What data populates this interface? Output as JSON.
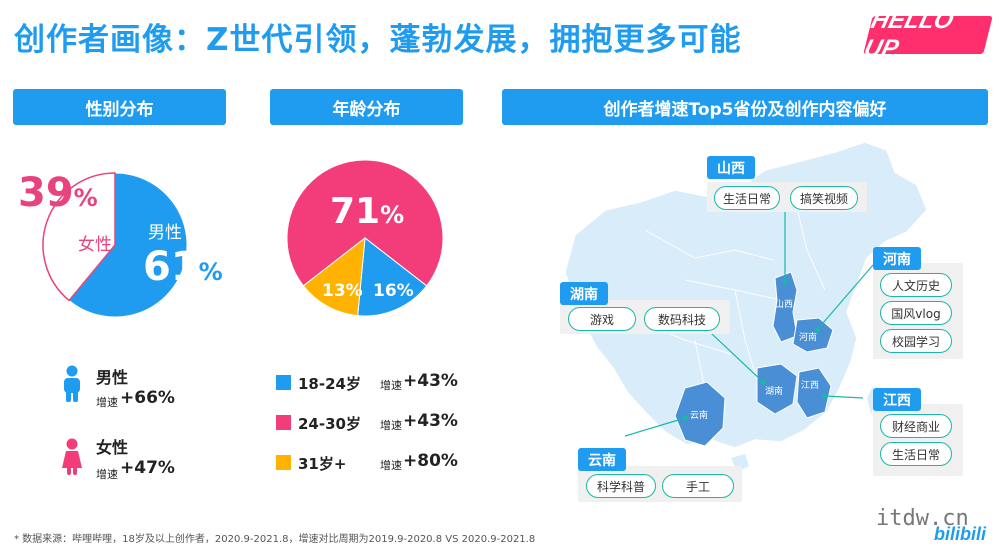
{
  "header": {
    "title": "创作者画像：Z世代引领，蓬勃发展，拥抱更多可能",
    "logo": "HELLO UP"
  },
  "sections": {
    "gender": "性别分布",
    "age": "年龄分布",
    "region": "创作者增速Top5省份及创作内容偏好"
  },
  "gender": {
    "female_pct": "39",
    "male_pct": "61",
    "pct_sign": "%",
    "female_label": "女性",
    "male_label": "男性",
    "growth_label": "增速",
    "male_growth": "+66%",
    "female_growth": "+47%"
  },
  "age": {
    "big_label": "71",
    "pct_sign": "%",
    "mid_label": "13%",
    "small_label": "16%",
    "growth_label": "增速"
  },
  "chart_data": [
    {
      "type": "pie",
      "title": "性别分布",
      "slices": [
        {
          "name": "男性",
          "value": 61,
          "color": "#1f9cf0"
        },
        {
          "name": "女性",
          "value": 39,
          "color": "#ffffff",
          "stroke": "#e8437e"
        }
      ],
      "growth": [
        {
          "name": "男性",
          "value": "+66%"
        },
        {
          "name": "女性",
          "value": "+47%"
        }
      ]
    },
    {
      "type": "pie",
      "title": "年龄分布",
      "slices": [
        {
          "name": "24-30岁",
          "value": 71,
          "color": "#f23d7a"
        },
        {
          "name": "18-24岁",
          "value": 16,
          "color": "#1f9cf0"
        },
        {
          "name": "31岁+",
          "value": 13,
          "color": "#ffb300"
        }
      ],
      "legend": [
        {
          "name": "18-24岁",
          "growth": "+43%",
          "color": "#1f9cf0"
        },
        {
          "name": "24-30岁",
          "growth": "+43%",
          "color": "#f23d7a"
        },
        {
          "name": "31岁+",
          "growth": "+80%",
          "color": "#ffb300"
        }
      ]
    }
  ],
  "map": {
    "provinces": [
      {
        "name": "山西",
        "map_label": "山西",
        "tags": [
          "生活日常",
          "搞笑视频"
        ]
      },
      {
        "name": "河南",
        "map_label": "河南",
        "tags": [
          "人文历史",
          "国风vlog",
          "校园学习"
        ]
      },
      {
        "name": "湖南",
        "map_label": "湖南",
        "tags": [
          "游戏",
          "数码科技"
        ]
      },
      {
        "name": "江西",
        "map_label": "江西",
        "tags": [
          "财经商业",
          "生活日常"
        ]
      },
      {
        "name": "云南",
        "map_label": "云南",
        "tags": [
          "科学科普",
          "手工"
        ]
      }
    ]
  },
  "footnote": "* 数据来源：哔哩哔哩，18岁及以上创作者，2020.9-2021.8，增速对比周期为2019.9-2020.8 VS 2020.9-2021.8",
  "watermark": "itdw.cn",
  "brand": "bilibili",
  "colors": {
    "blue": "#1f9cf0",
    "pink": "#f23d7a",
    "yellow": "#ffb300",
    "teal": "#19b8a7",
    "map_light": "#d9ecf9",
    "map_dark": "#4a8fd6"
  }
}
